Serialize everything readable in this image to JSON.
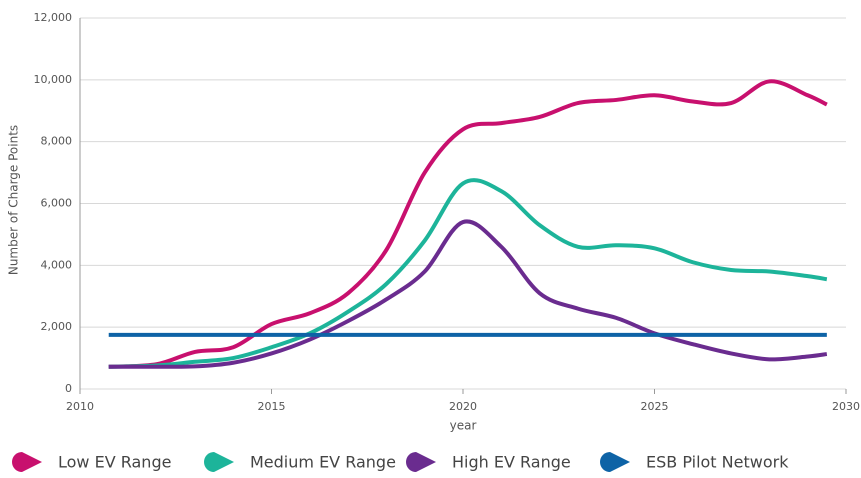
{
  "chart_data": {
    "type": "line",
    "x_label": "year",
    "y_label": "Number of Charge Points",
    "x": [
      2010.75,
      2012,
      2013,
      2014,
      2015,
      2016,
      2017,
      2018,
      2019,
      2020,
      2021,
      2022,
      2023,
      2024,
      2025,
      2026,
      2027,
      2028,
      2029,
      2029.5
    ],
    "series": [
      {
        "name": "Low EV Range",
        "color": "#c8106e",
        "values": [
          720,
          800,
          1200,
          1350,
          2100,
          2450,
          3100,
          4500,
          7000,
          8400,
          8600,
          8800,
          9250,
          9350,
          9500,
          9300,
          9250,
          9950,
          9500,
          9200
        ]
      },
      {
        "name": "Medium EV Range",
        "color": "#1db49a",
        "values": [
          720,
          760,
          880,
          1000,
          1350,
          1800,
          2500,
          3400,
          4800,
          6650,
          6400,
          5300,
          4600,
          4650,
          4550,
          4100,
          3850,
          3800,
          3650,
          3550
        ]
      },
      {
        "name": "High EV Range",
        "color": "#6a2c8f",
        "values": [
          720,
          720,
          730,
          850,
          1150,
          1600,
          2200,
          2900,
          3800,
          5400,
          4600,
          3100,
          2600,
          2300,
          1800,
          1450,
          1150,
          960,
          1050,
          1130
        ]
      },
      {
        "name": "ESB Pilot Network",
        "color": "#0e63a6",
        "values": [
          1750,
          1750,
          1750,
          1750,
          1750,
          1750,
          1750,
          1750,
          1750,
          1750,
          1750,
          1750,
          1750,
          1750,
          1750,
          1750,
          1750,
          1750,
          1750,
          1750
        ]
      }
    ],
    "xlim": [
      2010,
      2030
    ],
    "xticks": [
      2010,
      2015,
      2020,
      2025,
      2030
    ],
    "ylim": [
      0,
      12000
    ],
    "yticks": [
      0,
      {
        "value": 2000,
        "label": "2,000"
      },
      {
        "value": 4000,
        "label": "4,000"
      },
      {
        "value": 6000,
        "label": "6,000"
      },
      {
        "value": 8000,
        "label": "8,000"
      },
      {
        "value": 10000,
        "label": "10,000"
      },
      {
        "value": 12000,
        "label": "12,000"
      }
    ],
    "grid": true
  }
}
